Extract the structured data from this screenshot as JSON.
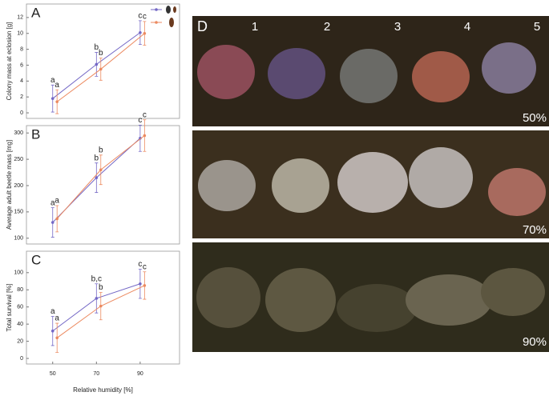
{
  "chart_data": [
    {
      "type": "line",
      "panel_label": "A",
      "ylabel": "Colony mass at eclosion [g]",
      "xlim": [
        38,
        108
      ],
      "ylim": [
        -0.7,
        13.7
      ],
      "yticks": [
        0,
        2,
        4,
        6,
        8,
        10,
        12
      ],
      "series": [
        {
          "color": "#7468c6",
          "x": [
            50,
            70,
            90
          ],
          "values": [
            1.8,
            6.1,
            10.1
          ],
          "errors": [
            1.7,
            1.5,
            1.5
          ],
          "labels": [
            "a",
            "b",
            "c"
          ]
        },
        {
          "color": "#ec8a60",
          "x": [
            52,
            72,
            92
          ],
          "values": [
            1.4,
            5.5,
            10.0
          ],
          "errors": [
            1.5,
            1.4,
            1.5
          ],
          "labels": [
            "a",
            "b",
            "c"
          ]
        }
      ]
    },
    {
      "type": "line",
      "panel_label": "B",
      "ylabel": "Average adult beetle mass [mg]",
      "xlim": [
        38,
        108
      ],
      "ylim": [
        89,
        314
      ],
      "yticks": [
        100,
        150,
        200,
        250,
        300
      ],
      "series": [
        {
          "color": "#7468c6",
          "x": [
            50,
            70,
            90
          ],
          "values": [
            130,
            215,
            290
          ],
          "errors": [
            28,
            28,
            25
          ],
          "labels": [
            "a",
            "b",
            "c"
          ]
        },
        {
          "color": "#ec8a60",
          "x": [
            52,
            72,
            92
          ],
          "values": [
            137,
            230,
            295
          ],
          "errors": [
            25,
            28,
            30
          ],
          "labels": [
            "a",
            "b",
            "c"
          ]
        }
      ]
    },
    {
      "type": "line",
      "panel_label": "C",
      "ylabel": "Total survival [%]",
      "xlabel": "Relative humidity [%]",
      "xlim": [
        38,
        108
      ],
      "xticks": [
        50,
        70,
        90
      ],
      "ylim": [
        -6.5,
        125
      ],
      "yticks": [
        0,
        20,
        40,
        60,
        80,
        100
      ],
      "series": [
        {
          "color": "#7468c6",
          "x": [
            50,
            70,
            90
          ],
          "values": [
            32,
            70,
            87
          ],
          "errors": [
            17,
            17,
            17
          ],
          "labels": [
            "a",
            "b,c",
            "c"
          ]
        },
        {
          "color": "#ec8a60",
          "x": [
            52,
            72,
            92
          ],
          "values": [
            24,
            61,
            85
          ],
          "errors": [
            17,
            16,
            16
          ],
          "labels": [
            "a",
            "b",
            "c"
          ]
        }
      ]
    }
  ],
  "photo_panel": {
    "label": "D",
    "columns": [
      "1",
      "2",
      "3",
      "4",
      "5"
    ],
    "rows": [
      "50%",
      "70%",
      "90%"
    ]
  }
}
